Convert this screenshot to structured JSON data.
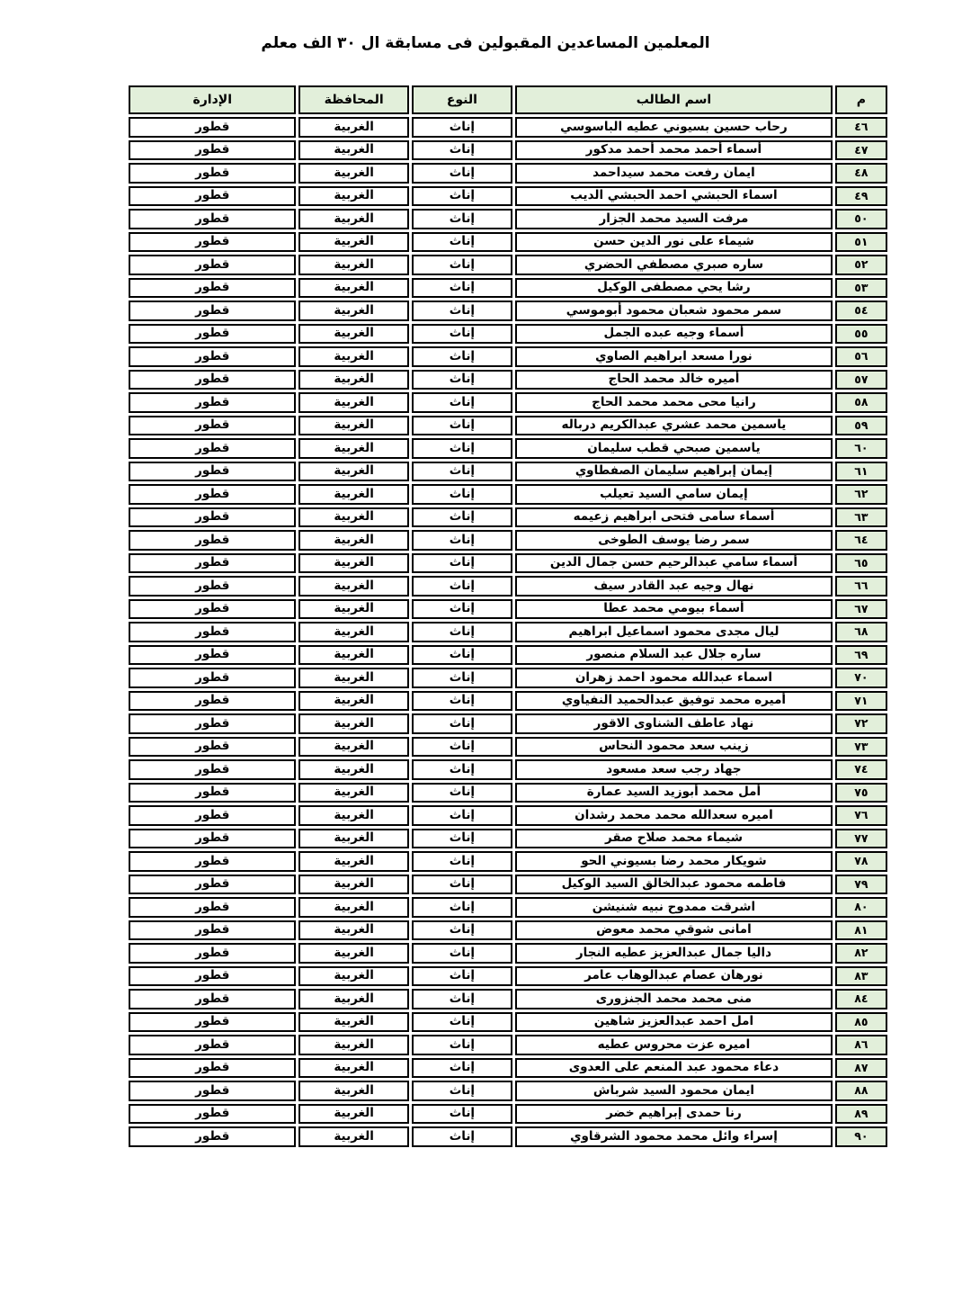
{
  "title": "المعلمين المساعدين المقبولين فى مسابقة ال ٣٠ الف معلم",
  "colors": {
    "header_bg": "#e2efda",
    "serial_bg": "#e2efda",
    "border": "#000000",
    "page_bg": "#ffffff"
  },
  "table": {
    "headers": {
      "num": "م",
      "name": "اسم الطالب",
      "type": "النوع",
      "gov": "المحافظة",
      "admin": "الإدارة"
    },
    "rows": [
      {
        "num": "٤٦",
        "name": "رحاب حسين بسيوني عطيه الباسوسي",
        "type": "إناث",
        "gov": "الغربية",
        "admin": "قطور"
      },
      {
        "num": "٤٧",
        "name": "أسماء أحمد محمد أحمد مدكور",
        "type": "إناث",
        "gov": "الغربية",
        "admin": "قطور"
      },
      {
        "num": "٤٨",
        "name": "ايمان رفعت محمد سيداحمد",
        "type": "إناث",
        "gov": "الغربية",
        "admin": "قطور"
      },
      {
        "num": "٤٩",
        "name": "اسماء الحبشي احمد الحبشي الديب",
        "type": "إناث",
        "gov": "الغربية",
        "admin": "قطور"
      },
      {
        "num": "٥٠",
        "name": "مرفت السيد محمد الجزار",
        "type": "إناث",
        "gov": "الغربية",
        "admin": "قطور"
      },
      {
        "num": "٥١",
        "name": "شيماء على نور الدين حسن",
        "type": "إناث",
        "gov": "الغربية",
        "admin": "قطور"
      },
      {
        "num": "٥٢",
        "name": "ساره صبري مصطفي الحضري",
        "type": "إناث",
        "gov": "الغربية",
        "admin": "قطور"
      },
      {
        "num": "٥٣",
        "name": "رشا يحي مصطفى الوكيل",
        "type": "إناث",
        "gov": "الغربية",
        "admin": "قطور"
      },
      {
        "num": "٥٤",
        "name": "سمر محمود شعبان محمود أبوموسي",
        "type": "إناث",
        "gov": "الغربية",
        "admin": "قطور"
      },
      {
        "num": "٥٥",
        "name": "أسماء وجيه عبده الجمل",
        "type": "إناث",
        "gov": "الغربية",
        "admin": "قطور"
      },
      {
        "num": "٥٦",
        "name": "نورا مسعد ابراهيم الصاوي",
        "type": "إناث",
        "gov": "الغربية",
        "admin": "قطور"
      },
      {
        "num": "٥٧",
        "name": "أميره خالد محمد الحاج",
        "type": "إناث",
        "gov": "الغربية",
        "admin": "قطور"
      },
      {
        "num": "٥٨",
        "name": "رانيا محى محمد محمد الحاج",
        "type": "إناث",
        "gov": "الغربية",
        "admin": "قطور"
      },
      {
        "num": "٥٩",
        "name": "ياسمين محمد عشري عبدالكريم درباله",
        "type": "إناث",
        "gov": "الغربية",
        "admin": "قطور"
      },
      {
        "num": "٦٠",
        "name": "ياسمين صبحي قطب سليمان",
        "type": "إناث",
        "gov": "الغربية",
        "admin": "قطور"
      },
      {
        "num": "٦١",
        "name": "إيمان إبراهيم سليمان الصفطاوي",
        "type": "إناث",
        "gov": "الغربية",
        "admin": "قطور"
      },
      {
        "num": "٦٢",
        "name": "إيمان سامي السيد تعيلب",
        "type": "إناث",
        "gov": "الغربية",
        "admin": "قطور"
      },
      {
        "num": "٦٣",
        "name": "أسماء سامى فتحى ابراهيم زعيمه",
        "type": "إناث",
        "gov": "الغربية",
        "admin": "قطور"
      },
      {
        "num": "٦٤",
        "name": "سمر رضا يوسف الطوخى",
        "type": "إناث",
        "gov": "الغربية",
        "admin": "قطور"
      },
      {
        "num": "٦٥",
        "name": "أسماء سامي عبدالرحيم حسن جمال الدين",
        "type": "إناث",
        "gov": "الغربية",
        "admin": "قطور"
      },
      {
        "num": "٦٦",
        "name": "نهال وجيه عبد القادر  سيف",
        "type": "إناث",
        "gov": "الغربية",
        "admin": "قطور"
      },
      {
        "num": "٦٧",
        "name": "أسماء بيومي محمد عطا",
        "type": "إناث",
        "gov": "الغربية",
        "admin": "قطور"
      },
      {
        "num": "٦٨",
        "name": "ليال مجدى محمود اسماعيل ابراهيم",
        "type": "إناث",
        "gov": "الغربية",
        "admin": "قطور"
      },
      {
        "num": "٦٩",
        "name": "ساره جلال عبد السلام منصور",
        "type": "إناث",
        "gov": "الغربية",
        "admin": "قطور"
      },
      {
        "num": "٧٠",
        "name": "اسماء عبدالله محمود احمد زهران",
        "type": "إناث",
        "gov": "الغربية",
        "admin": "قطور"
      },
      {
        "num": "٧١",
        "name": "أميره محمد توفيق عبدالحميد النفياوي",
        "type": "إناث",
        "gov": "الغربية",
        "admin": "قطور"
      },
      {
        "num": "٧٢",
        "name": "نهاد عاطف الشناوى الاقور",
        "type": "إناث",
        "gov": "الغربية",
        "admin": "قطور"
      },
      {
        "num": "٧٣",
        "name": "زينب سعد محمود النحاس",
        "type": "إناث",
        "gov": "الغربية",
        "admin": "قطور"
      },
      {
        "num": "٧٤",
        "name": "جهاد رجب سعد مسعود",
        "type": "إناث",
        "gov": "الغربية",
        "admin": "قطور"
      },
      {
        "num": "٧٥",
        "name": "أمل محمد أبوزيد السيد عمارة",
        "type": "إناث",
        "gov": "الغربية",
        "admin": "قطور"
      },
      {
        "num": "٧٦",
        "name": "اميره سعدالله محمد محمد رشدان",
        "type": "إناث",
        "gov": "الغربية",
        "admin": "قطور"
      },
      {
        "num": "٧٧",
        "name": "شيماء محمد صلاح صقر",
        "type": "إناث",
        "gov": "الغربية",
        "admin": "قطور"
      },
      {
        "num": "٧٨",
        "name": "شويكار محمد رضا بسيوني الحو",
        "type": "إناث",
        "gov": "الغربية",
        "admin": "قطور"
      },
      {
        "num": "٧٩",
        "name": "فاطمه محمود عبدالخالق السيد الوكيل",
        "type": "إناث",
        "gov": "الغربية",
        "admin": "قطور"
      },
      {
        "num": "٨٠",
        "name": "اشرقت ممدوح نبيه شنيشن",
        "type": "إناث",
        "gov": "الغربية",
        "admin": "قطور"
      },
      {
        "num": "٨١",
        "name": "امانى شوقي محمد معوض",
        "type": "إناث",
        "gov": "الغربية",
        "admin": "قطور"
      },
      {
        "num": "٨٢",
        "name": "داليا جمال عبدالعزيز عطيه النجار",
        "type": "إناث",
        "gov": "الغربية",
        "admin": "قطور"
      },
      {
        "num": "٨٣",
        "name": "نورهان عصام عبدالوهاب عامر",
        "type": "إناث",
        "gov": "الغربية",
        "admin": "قطور"
      },
      {
        "num": "٨٤",
        "name": "منى محمد محمد الجنزورى",
        "type": "إناث",
        "gov": "الغربية",
        "admin": "قطور"
      },
      {
        "num": "٨٥",
        "name": "امل احمد عبدالعزيز شاهين",
        "type": "إناث",
        "gov": "الغربية",
        "admin": "قطور"
      },
      {
        "num": "٨٦",
        "name": "اميره عزت محروس عطيه",
        "type": "إناث",
        "gov": "الغربية",
        "admin": "قطور"
      },
      {
        "num": "٨٧",
        "name": "دعاء محمود عبد المنعم على العدوى",
        "type": "إناث",
        "gov": "الغربية",
        "admin": "قطور"
      },
      {
        "num": "٨٨",
        "name": "ايمان محمود السيد شرباش",
        "type": "إناث",
        "gov": "الغربية",
        "admin": "قطور"
      },
      {
        "num": "٨٩",
        "name": "رنا حمدى إبراهيم خضر",
        "type": "إناث",
        "gov": "الغربية",
        "admin": "قطور"
      },
      {
        "num": "٩٠",
        "name": "إسراء وائل محمد محمود الشرقاوي",
        "type": "إناث",
        "gov": "الغربية",
        "admin": "قطور"
      }
    ]
  }
}
